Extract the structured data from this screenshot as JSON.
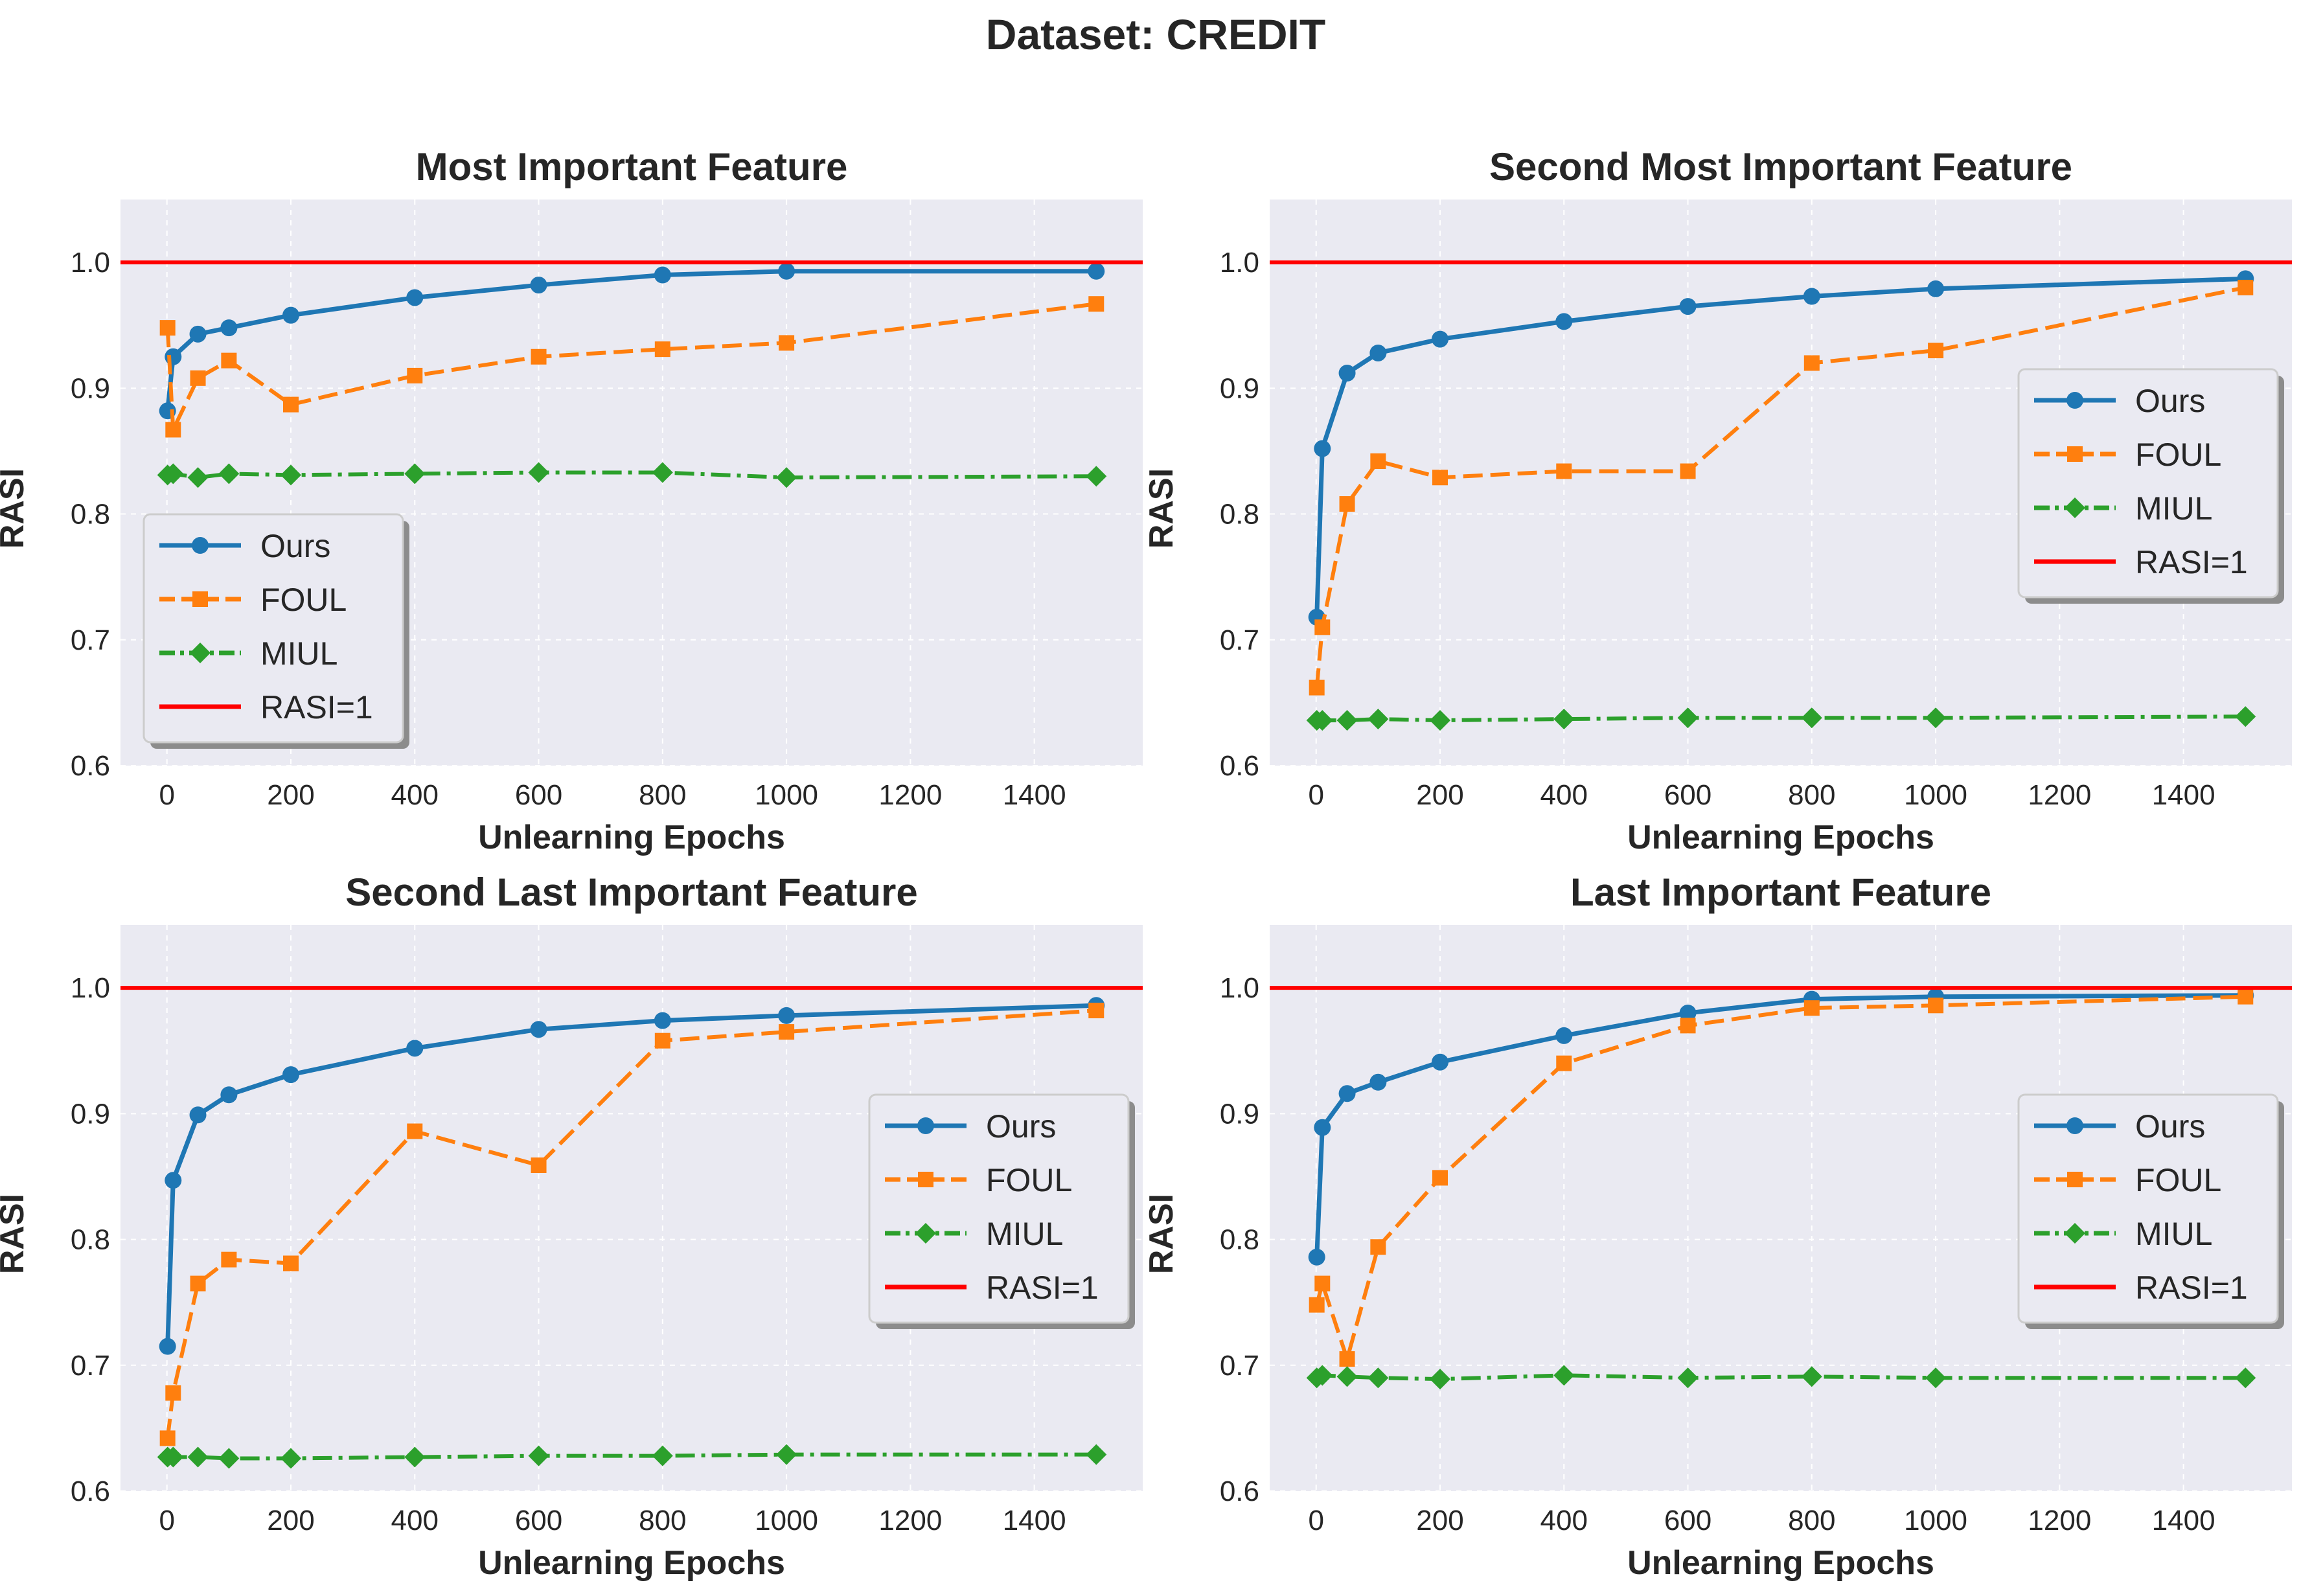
{
  "figure": {
    "suptitle": "Dataset: CREDIT",
    "colors": {
      "ours": "#1f77b4",
      "foul": "#ff7f0e",
      "miul": "#2ca02c",
      "reference": "#ff0000",
      "panel_bg": "#eaeaf2",
      "grid": "#ffffff"
    }
  },
  "chart_data": [
    {
      "type": "line",
      "title": "Most Important Feature",
      "xlabel": "Unlearning Epochs",
      "ylabel": "RASI",
      "xlim": [
        -75,
        1575
      ],
      "ylim": [
        0.6,
        1.05
      ],
      "xticks": [
        "0",
        "200",
        "400",
        "600",
        "800",
        "1000",
        "1200",
        "1400"
      ],
      "yticks": [
        "0.6",
        "0.7",
        "0.8",
        "0.9",
        "1.0"
      ],
      "grid": true,
      "legend_position": "lower-left",
      "x": [
        1,
        10,
        50,
        100,
        200,
        400,
        600,
        800,
        1000,
        1500
      ],
      "series": [
        {
          "name": "Ours",
          "values": [
            0.882,
            0.925,
            0.943,
            0.948,
            0.958,
            0.972,
            0.982,
            0.99,
            0.993,
            0.993
          ]
        },
        {
          "name": "FOUL",
          "values": [
            0.948,
            0.867,
            0.908,
            0.922,
            0.887,
            0.91,
            0.925,
            0.931,
            0.936,
            0.967
          ]
        },
        {
          "name": "MIUL",
          "values": [
            0.831,
            0.832,
            0.829,
            0.832,
            0.831,
            0.832,
            0.833,
            0.833,
            0.829,
            0.83
          ]
        },
        {
          "name": "RASI=1",
          "y": 1.0
        }
      ]
    },
    {
      "type": "line",
      "title": "Second Most Important Feature",
      "xlabel": "Unlearning Epochs",
      "ylabel": "RASI",
      "xlim": [
        -75,
        1575
      ],
      "ylim": [
        0.6,
        1.05
      ],
      "xticks": [
        "0",
        "200",
        "400",
        "600",
        "800",
        "1000",
        "1200",
        "1400"
      ],
      "yticks": [
        "0.6",
        "0.7",
        "0.8",
        "0.9",
        "1.0"
      ],
      "grid": true,
      "legend_position": "center-right",
      "x": [
        1,
        10,
        50,
        100,
        200,
        400,
        600,
        800,
        1000,
        1500
      ],
      "series": [
        {
          "name": "Ours",
          "values": [
            0.718,
            0.852,
            0.912,
            0.928,
            0.939,
            0.953,
            0.965,
            0.973,
            0.979,
            0.987
          ]
        },
        {
          "name": "FOUL",
          "values": [
            0.662,
            0.71,
            0.808,
            0.842,
            0.829,
            0.834,
            0.834,
            0.92,
            0.93,
            0.98
          ]
        },
        {
          "name": "MIUL",
          "values": [
            0.636,
            0.636,
            0.636,
            0.637,
            0.636,
            0.637,
            0.638,
            0.638,
            0.638,
            0.639
          ]
        },
        {
          "name": "RASI=1",
          "y": 1.0
        }
      ]
    },
    {
      "type": "line",
      "title": "Second Last Important Feature",
      "xlabel": "Unlearning Epochs",
      "ylabel": "RASI",
      "xlim": [
        -75,
        1575
      ],
      "ylim": [
        0.6,
        1.05
      ],
      "xticks": [
        "0",
        "200",
        "400",
        "600",
        "800",
        "1000",
        "1200",
        "1400"
      ],
      "yticks": [
        "0.6",
        "0.7",
        "0.8",
        "0.9",
        "1.0"
      ],
      "grid": true,
      "legend_position": "center-right",
      "x": [
        1,
        10,
        50,
        100,
        200,
        400,
        600,
        800,
        1000,
        1500
      ],
      "series": [
        {
          "name": "Ours",
          "values": [
            0.715,
            0.847,
            0.899,
            0.915,
            0.931,
            0.952,
            0.967,
            0.974,
            0.978,
            0.986
          ]
        },
        {
          "name": "FOUL",
          "values": [
            0.642,
            0.678,
            0.765,
            0.784,
            0.781,
            0.886,
            0.859,
            0.958,
            0.965,
            0.982
          ]
        },
        {
          "name": "MIUL",
          "values": [
            0.627,
            0.627,
            0.627,
            0.626,
            0.626,
            0.627,
            0.628,
            0.628,
            0.629,
            0.629
          ]
        },
        {
          "name": "RASI=1",
          "y": 1.0
        }
      ]
    },
    {
      "type": "line",
      "title": "Last Important Feature",
      "xlabel": "Unlearning Epochs",
      "ylabel": "RASI",
      "xlim": [
        -75,
        1575
      ],
      "ylim": [
        0.6,
        1.05
      ],
      "xticks": [
        "0",
        "200",
        "400",
        "600",
        "800",
        "1000",
        "1200",
        "1400"
      ],
      "yticks": [
        "0.6",
        "0.7",
        "0.8",
        "0.9",
        "1.0"
      ],
      "grid": true,
      "legend_position": "center-right",
      "x": [
        1,
        10,
        50,
        100,
        200,
        400,
        600,
        800,
        1000,
        1500
      ],
      "series": [
        {
          "name": "Ours",
          "values": [
            0.786,
            0.889,
            0.916,
            0.925,
            0.941,
            0.962,
            0.98,
            0.991,
            0.993,
            0.994
          ]
        },
        {
          "name": "FOUL",
          "values": [
            0.748,
            0.765,
            0.705,
            0.794,
            0.849,
            0.94,
            0.97,
            0.984,
            0.986,
            0.993
          ]
        },
        {
          "name": "MIUL",
          "values": [
            0.69,
            0.692,
            0.691,
            0.69,
            0.689,
            0.692,
            0.69,
            0.691,
            0.69,
            0.69
          ]
        },
        {
          "name": "RASI=1",
          "y": 1.0
        }
      ]
    }
  ]
}
